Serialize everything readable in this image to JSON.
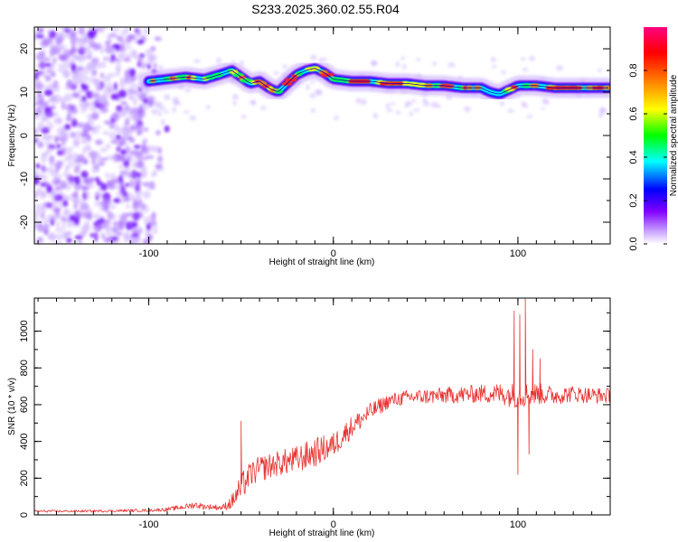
{
  "title": "S233.2025.360.02.55.R04",
  "chart_data": [
    {
      "type": "heatmap",
      "xlabel": "Height of straight line (km)",
      "ylabel": "Frequency (Hz)",
      "xlim": [
        -162,
        150
      ],
      "ylim": [
        -25,
        25
      ],
      "xticks": [
        -100,
        0,
        100
      ],
      "yticks": [
        -20,
        -10,
        0,
        10,
        20
      ],
      "colorbar": {
        "label": "Normalized spectral amplitude",
        "range": [
          0,
          1
        ],
        "ticks": [
          0.0,
          0.2,
          0.4,
          0.6,
          0.8
        ],
        "tick_labels": [
          "0.0",
          "0.2",
          "0.4",
          "0.6",
          "0.8"
        ],
        "colors": [
          "#ffffff",
          "#8000ff",
          "#0000ff",
          "#00ffff",
          "#00ff00",
          "#ffff00",
          "#ff8000",
          "#ff0000",
          "#ff0080"
        ]
      },
      "ridge": {
        "x": [
          -100,
          -90,
          -80,
          -70,
          -62,
          -55,
          -50,
          -45,
          -40,
          -35,
          -30,
          -25,
          -20,
          -15,
          -10,
          -5,
          0,
          10,
          20,
          30,
          40,
          50,
          60,
          70,
          80,
          85,
          90,
          95,
          100,
          110,
          120,
          130,
          140,
          150
        ],
        "freq": [
          12.5,
          13,
          13.5,
          13,
          14,
          15,
          13.5,
          12,
          12.5,
          11,
          10,
          12,
          14,
          15,
          15.5,
          14.5,
          13,
          12.5,
          12.5,
          12,
          12,
          11.5,
          11.5,
          11,
          11,
          10,
          9.5,
          10.5,
          11.5,
          11.5,
          11,
          11,
          11,
          11
        ]
      },
      "noise_region_x": [
        -162,
        -90
      ],
      "noise_region_freq": [
        -25,
        25
      ]
    },
    {
      "type": "line",
      "xlabel": "Height of straight line (km)",
      "ylabel": "SNR (10 * v/v)",
      "xlim": [
        -162,
        150
      ],
      "ylim": [
        0,
        1180
      ],
      "xticks": [
        -100,
        0,
        100
      ],
      "yticks": [
        0,
        200,
        400,
        600,
        800,
        1000
      ],
      "color": "#e8312f",
      "envelope": {
        "x": [
          -162,
          -140,
          -120,
          -100,
          -90,
          -80,
          -75,
          -70,
          -60,
          -55,
          -50,
          -45,
          -40,
          -30,
          -20,
          -10,
          0,
          10,
          20,
          30,
          40,
          60,
          80,
          90,
          100,
          110,
          120,
          130,
          140,
          150
        ],
        "mean": [
          20,
          20,
          22,
          25,
          30,
          45,
          55,
          45,
          40,
          70,
          150,
          220,
          250,
          280,
          300,
          340,
          380,
          480,
          560,
          620,
          640,
          650,
          660,
          660,
          650,
          660,
          650,
          660,
          650,
          650
        ],
        "amp": [
          6,
          6,
          7,
          8,
          10,
          15,
          20,
          15,
          15,
          40,
          80,
          70,
          70,
          70,
          75,
          80,
          70,
          60,
          50,
          40,
          40,
          45,
          50,
          60,
          70,
          60,
          50,
          45,
          45,
          40
        ]
      },
      "spikes": [
        {
          "x": -50,
          "y": 510
        },
        {
          "x": -48,
          "y": 120
        },
        {
          "x": 98,
          "y": 1110
        },
        {
          "x": 100,
          "y": 220
        },
        {
          "x": 101,
          "y": 1090
        },
        {
          "x": 104,
          "y": 1180
        },
        {
          "x": 106,
          "y": 330
        },
        {
          "x": 108,
          "y": 900
        },
        {
          "x": 112,
          "y": 850
        }
      ]
    }
  ]
}
